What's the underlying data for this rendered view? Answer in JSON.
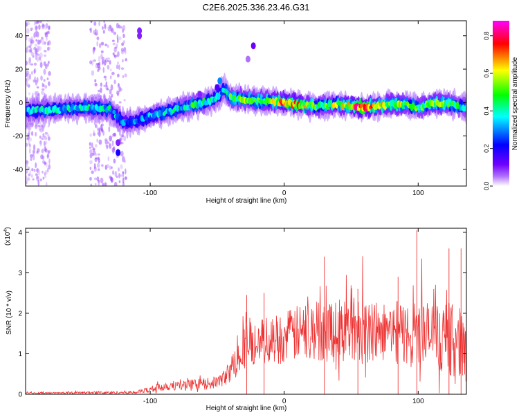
{
  "figure_title": "C2E6.2025.336.23.46.G31",
  "chart_data": [
    {
      "type": "heatmap",
      "title": "C2E6.2025.336.23.46.G31",
      "xlabel": "Height of straight line (km)",
      "ylabel": "Frequency (Hz)",
      "xlim": [
        -193,
        136
      ],
      "ylim": [
        -50,
        49
      ],
      "xticks": [
        -100,
        0,
        100
      ],
      "xtick_labels": [
        "-100",
        "0",
        "100"
      ],
      "yticks": [
        -40,
        -20,
        0,
        20,
        40
      ],
      "ytick_labels": [
        "-40",
        "-20",
        "0",
        "20",
        "40"
      ],
      "colorbar": {
        "label": "Normalized spectral amplitude",
        "range": [
          0,
          0.88
        ],
        "ticks": [
          0,
          0.2,
          0.4,
          0.6,
          0.8
        ],
        "tick_labels": [
          "0.0",
          "0.2",
          "0.4",
          "0.6",
          "0.8"
        ],
        "colors": [
          "#ffffff",
          "#8800ff",
          "#0000ff",
          "#00ffff",
          "#00ff00",
          "#ffff00",
          "#ff0000",
          "#ff00ff"
        ]
      },
      "ridge": {
        "x": [
          -193,
          -170,
          -150,
          -130,
          -120,
          -110,
          -100,
          -90,
          -80,
          -70,
          -60,
          -55,
          -50,
          -45,
          -40,
          -30,
          -20,
          -10,
          0,
          10,
          20,
          30,
          40,
          50,
          60,
          70,
          80,
          90,
          100,
          110,
          120,
          130,
          136
        ],
        "freq": [
          -5,
          -4,
          -3,
          -4,
          -12,
          -11,
          -8,
          -6,
          -4,
          -2,
          0,
          1,
          3,
          8,
          3,
          2,
          1,
          1,
          0,
          -1,
          -2,
          -2,
          -1,
          -2,
          -3,
          -2,
          -1,
          -1,
          -3,
          -1,
          0,
          -2,
          -3
        ],
        "amplitude": [
          0.35,
          0.4,
          0.4,
          0.4,
          0.3,
          0.3,
          0.35,
          0.4,
          0.4,
          0.45,
          0.45,
          0.4,
          0.35,
          0.35,
          0.5,
          0.55,
          0.5,
          0.6,
          0.75,
          0.7,
          0.55,
          0.5,
          0.6,
          0.7,
          0.8,
          0.6,
          0.6,
          0.55,
          0.5,
          0.6,
          0.55,
          0.45,
          0.45
        ]
      },
      "features": [
        {
          "x": -48,
          "freq": 13,
          "amplitude": 0.3
        },
        {
          "x": -50,
          "freq": 9,
          "amplitude": 0.15
        },
        {
          "x": -23,
          "freq": 34,
          "amplitude": 0.12
        },
        {
          "x": -27,
          "freq": 26,
          "amplitude": 0.05
        },
        {
          "x": -108,
          "freq": 43,
          "amplitude": 0.1
        },
        {
          "x": -108,
          "freq": 40,
          "amplitude": 0.1
        },
        {
          "x": -124,
          "freq": -30,
          "amplitude": 0.2
        },
        {
          "x": -124,
          "freq": -24,
          "amplitude": 0.1
        },
        {
          "x": -63,
          "freq": 5,
          "amplitude": 0.1
        }
      ],
      "noise_columns": [
        {
          "x_range": [
            -193,
            -175
          ],
          "amplitude": 0.05
        },
        {
          "x_range": [
            -145,
            -118
          ],
          "amplitude": 0.06
        }
      ]
    },
    {
      "type": "line",
      "title": "",
      "xlabel": "Height of straight line (km)",
      "ylabel": "SNR (10 * v/v)",
      "y_scale_label": "(x10",
      "y_scale_exponent": "4",
      "y_scale_close": ")",
      "xlim": [
        -193,
        136
      ],
      "ylim": [
        0,
        4.1
      ],
      "xticks": [
        -100,
        0,
        100
      ],
      "xtick_labels": [
        "-100",
        "0",
        "100"
      ],
      "yticks": [
        0,
        1,
        2,
        3,
        4
      ],
      "ytick_labels": [
        "0",
        "1",
        "2",
        "3",
        "4"
      ],
      "color": "#ee3333",
      "series": [
        {
          "name": "SNR",
          "x": [
            -193,
            -170,
            -150,
            -130,
            -110,
            -100,
            -90,
            -80,
            -70,
            -60,
            -50,
            -45,
            -40,
            -35,
            -32,
            -30,
            -28,
            -25,
            -20,
            -10,
            0,
            10,
            20,
            30,
            40,
            50,
            60,
            70,
            80,
            90,
            100,
            110,
            120,
            130,
            136
          ],
          "baseline": [
            0.03,
            0.03,
            0.04,
            0.04,
            0.05,
            0.12,
            0.2,
            0.22,
            0.22,
            0.25,
            0.3,
            0.4,
            0.6,
            0.9,
            1.1,
            1.2,
            1.3,
            1.25,
            1.3,
            1.35,
            1.4,
            1.5,
            1.55,
            1.6,
            1.6,
            1.6,
            1.6,
            1.55,
            1.55,
            1.5,
            1.5,
            1.45,
            1.4,
            1.3,
            1.2
          ],
          "amplitude": [
            0.02,
            0.02,
            0.03,
            0.04,
            0.04,
            0.08,
            0.12,
            0.12,
            0.14,
            0.14,
            0.15,
            0.2,
            0.3,
            0.4,
            0.5,
            0.6,
            0.6,
            0.55,
            0.55,
            0.6,
            0.65,
            0.7,
            0.75,
            0.8,
            0.85,
            0.85,
            0.85,
            0.8,
            0.8,
            0.8,
            0.85,
            0.85,
            0.9,
            0.9,
            0.9
          ]
        }
      ],
      "peaks": [
        {
          "x": 99,
          "y": 4.05
        },
        {
          "x": 30,
          "y": 3.4
        },
        {
          "x": 123,
          "y": 3.6
        },
        {
          "x": 132,
          "y": 3.6
        },
        {
          "x": -15,
          "y": 2.5
        },
        {
          "x": -28,
          "y": 2.45
        },
        {
          "x": 55,
          "y": 2.6
        },
        {
          "x": 85,
          "y": 2.9
        }
      ]
    }
  ]
}
